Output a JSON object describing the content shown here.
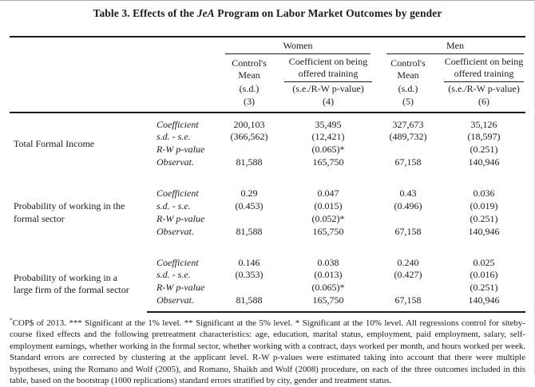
{
  "title": {
    "prefix": "Table 3. Effects of the ",
    "program": "JeA",
    "suffix": " Program on Labor Market Outcomes by gender"
  },
  "header": {
    "women": "Women",
    "men": "Men",
    "controls_line1": "Control's",
    "controls_line2": "Mean",
    "coef_line1": "Coefficient on being",
    "coef_line2": "offered training",
    "controls_sub": "(s.d.)",
    "coef_sub": "(s.e./R-W p-value)",
    "col3": "(3)",
    "col4": "(4)",
    "col5": "(5)",
    "col6": "(6)"
  },
  "blocks": [
    {
      "label": "Total Formal Income",
      "rows": [
        {
          "stat": "Coefficient",
          "values": [
            "200,103",
            "35,495",
            "327,673",
            "35,126"
          ]
        },
        {
          "stat": "s.d. - s.e.",
          "values": [
            "(366,562)",
            "(12,421)",
            "(489,732)",
            "(18,597)"
          ]
        },
        {
          "stat": "R-W p-value",
          "values": [
            "",
            "(0.065)*",
            "",
            "(0.251)"
          ]
        },
        {
          "stat": "Observat.",
          "values": [
            "81,588",
            "165,750",
            "67,158",
            "140,946"
          ]
        }
      ]
    },
    {
      "label": "Probability of working in the\nformal sector",
      "rows": [
        {
          "stat": "Coefficient",
          "values": [
            "0.29",
            "0.047",
            "0.43",
            "0.036"
          ]
        },
        {
          "stat": "s.d. - s.e.",
          "values": [
            "(0.453)",
            "(0.015)",
            "(0.496)",
            "(0.019)"
          ]
        },
        {
          "stat": "R-W p-value",
          "values": [
            "",
            "(0.052)*",
            "",
            "(0.251)"
          ]
        },
        {
          "stat": "Observat.",
          "values": [
            "81,588",
            "165,750",
            "67,158",
            "140,946"
          ]
        }
      ]
    },
    {
      "label": "Probability of working in a\nlarge firm of the formal sector",
      "rows": [
        {
          "stat": "Coefficient",
          "values": [
            "0.146",
            "0.038",
            "0.240",
            "0.025"
          ]
        },
        {
          "stat": "s.d. - s.e.",
          "values": [
            "(0.353)",
            "(0.013)",
            "(0.427)",
            "(0.016)"
          ]
        },
        {
          "stat": "R-W p-value",
          "values": [
            "",
            "(0.065)*",
            "",
            "(0.251)"
          ]
        },
        {
          "stat": "Observat.",
          "values": [
            "81,588",
            "165,750",
            "67,158",
            "140,946"
          ]
        }
      ]
    }
  ],
  "footnote": {
    "marker": "*",
    "text": "COP$ of 2013. *** Significant at the 1% level. ** Significant at the 5% level. * Significant at the 10% level. All regressions control for siteby-course fixed effects and the following pretreatment characteristics: age, education, marital status, employment, paid employment, salary, self-employment earnings, whether working in the formal sector, whether working with a contract, days worked per month, and hours worked per week. Standard errors are corrected by clustering at the applicant level. R-W p-values were estimated taking into account that there were multiple hypotheses, using the Romano and Wolf (2005), and Romano, Shaikh and Wolf (2008) procedure, on each of the three outcomes included in this table, based on the bootstrap (1000 replications) standard errors stratified by city, gender and treatment status."
  },
  "colors": {
    "text": "#1b1b1b",
    "rule": "#1b1b1b",
    "background": "#ffffff"
  }
}
